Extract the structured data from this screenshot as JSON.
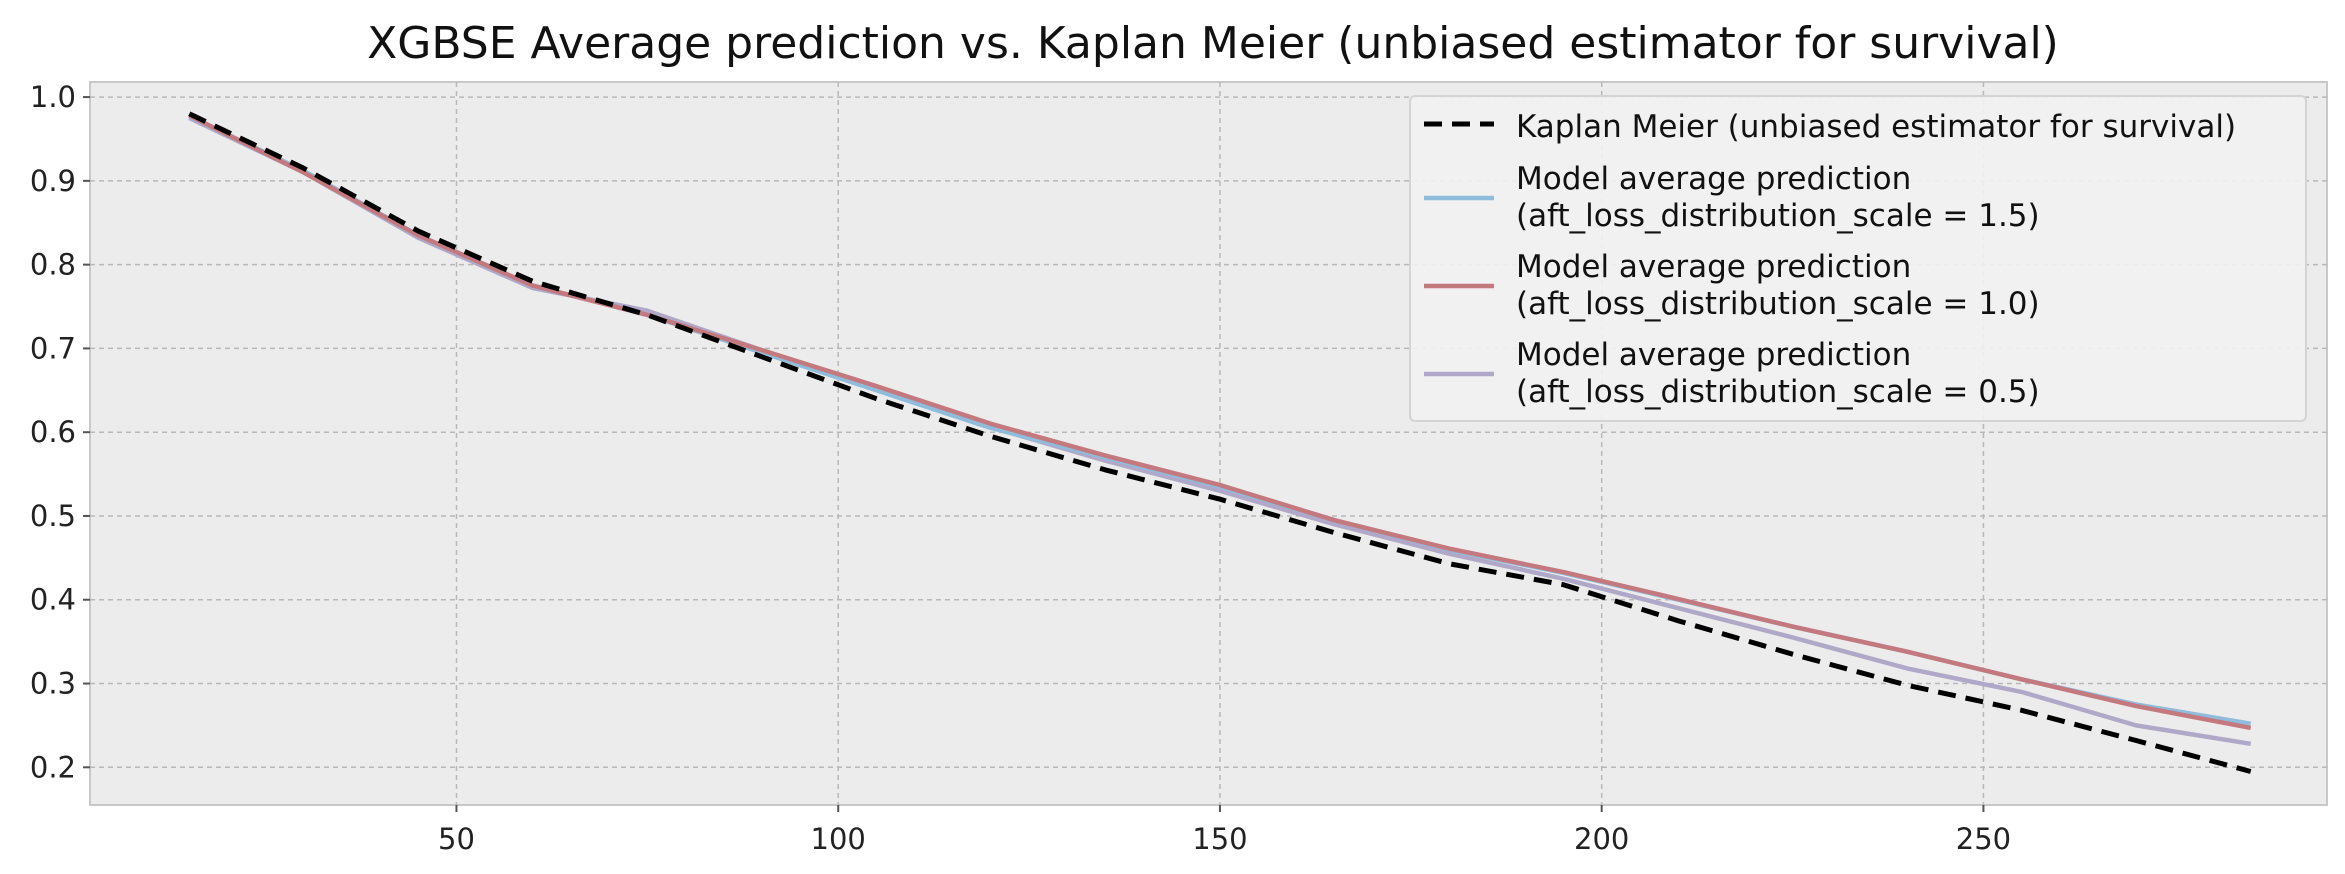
{
  "chart_data": {
    "type": "line",
    "title": "XGBSE Average prediction vs. Kaplan Meier (unbiased estimator for survival)",
    "xlabel": "",
    "ylabel": "",
    "xlim": [
      2,
      295
    ],
    "ylim": [
      0.155,
      1.018
    ],
    "xticks": [
      50,
      100,
      150,
      200,
      250
    ],
    "yticks": [
      0.2,
      0.3,
      0.4,
      0.5,
      0.6,
      0.7,
      0.8,
      0.9,
      1.0
    ],
    "x": [
      15,
      30,
      45,
      60,
      75,
      90,
      105,
      120,
      135,
      150,
      165,
      180,
      195,
      210,
      225,
      240,
      255,
      270,
      285
    ],
    "grid": true,
    "legend_position": "top-right",
    "series": [
      {
        "name": "Kaplan Meier (unbiased estimator for survival)",
        "color": "#000000",
        "style": "dashed",
        "values": [
          0.98,
          0.915,
          0.84,
          0.78,
          0.74,
          0.69,
          0.64,
          0.595,
          0.555,
          0.52,
          0.48,
          0.443,
          0.418,
          0.375,
          0.335,
          0.298,
          0.268,
          0.232,
          0.195
        ]
      },
      {
        "name": "Model average prediction\n(aft_loss_distribution_scale = 1.5)",
        "color": "#8fbcdb",
        "style": "solid",
        "values": [
          0.977,
          0.912,
          0.835,
          0.775,
          0.74,
          0.695,
          0.65,
          0.605,
          0.57,
          0.535,
          0.495,
          0.46,
          0.432,
          0.4,
          0.368,
          0.338,
          0.305,
          0.275,
          0.252
        ]
      },
      {
        "name": "Model average prediction\n(aft_loss_distribution_scale = 1.0)",
        "color": "#c4797f",
        "style": "solid",
        "values": [
          0.978,
          0.91,
          0.835,
          0.775,
          0.74,
          0.698,
          0.655,
          0.61,
          0.572,
          0.537,
          0.495,
          0.461,
          0.433,
          0.401,
          0.368,
          0.338,
          0.305,
          0.273,
          0.247
        ]
      },
      {
        "name": "Model average prediction\n(aft_loss_distribution_scale = 0.5)",
        "color": "#b0a8c8",
        "style": "solid",
        "values": [
          0.975,
          0.91,
          0.832,
          0.772,
          0.745,
          0.698,
          0.652,
          0.606,
          0.566,
          0.53,
          0.49,
          0.455,
          0.425,
          0.39,
          0.355,
          0.318,
          0.29,
          0.25,
          0.228
        ]
      }
    ]
  }
}
